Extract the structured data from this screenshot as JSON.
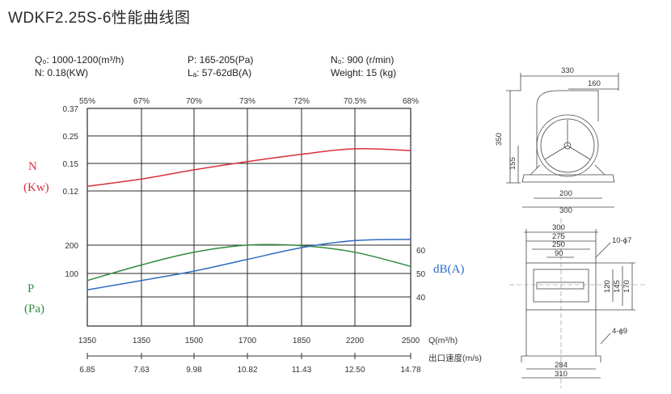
{
  "title": "WDKF2.25S-6性能曲线图",
  "specs": {
    "flow": "Q₀: 1000-1200(m³/h)",
    "power": "N: 0.18(KW)",
    "pressure": "P: 165-205(Pa)",
    "noise": "Lₐ: 57-62dB(A)",
    "speed": "N₀: 900 (r/min)",
    "weight": "Weight: 15 (kg)"
  },
  "chart_data": {
    "type": "line",
    "x": [
      1350,
      1350,
      1500,
      1700,
      1850,
      2200,
      2500
    ],
    "x_tick_labels": [
      "1350",
      "1350",
      "1500",
      "1700",
      "1850",
      "2200",
      "2500"
    ],
    "xlabel": "Q(m³/h)",
    "efficiency_labels": [
      "55%",
      "67%",
      "70%",
      "73%",
      "72%",
      "70.5%",
      "68%"
    ],
    "velocity_labels": [
      "6.85",
      "7.63",
      "9.98",
      "10.82",
      "11.43",
      "12.50",
      "14.78"
    ],
    "velocity_label": "出口速度(m/s)",
    "axes": {
      "power": {
        "label_top": "N",
        "label_bottom": "(Kw)",
        "ticks": [
          "0.37",
          "0.25",
          "0.15",
          "0.12"
        ],
        "tick_values": [
          0.37,
          0.25,
          0.15,
          0.12
        ]
      },
      "pressure": {
        "label_top": "P",
        "label_bottom": "(Pa)",
        "ticks": [
          "200",
          "100"
        ],
        "tick_values": [
          200,
          100
        ]
      },
      "noise": {
        "label": "dB(A)",
        "ticks": [
          "60",
          "50",
          "40"
        ],
        "tick_values": [
          60,
          50,
          40
        ]
      }
    },
    "series": [
      {
        "name": "N",
        "axis": "power",
        "color": "#d8303c",
        "values": [
          0.125,
          0.133,
          0.143,
          0.152,
          0.16,
          0.166,
          0.164
        ]
      },
      {
        "name": "P",
        "axis": "pressure",
        "color": "#2e8b3c",
        "values": [
          75,
          130,
          175,
          200,
          198,
          175,
          125
        ]
      },
      {
        "name": "dB(A)",
        "axis": "noise",
        "color": "#2f6cc0",
        "values": [
          43,
          47,
          51,
          56,
          61,
          64,
          64.5
        ]
      }
    ],
    "grid": true
  },
  "drawing": {
    "front_view": {
      "dims": [
        "330",
        "160",
        "350",
        "155",
        "200",
        "300"
      ]
    },
    "outlet_view": {
      "top_dims": [
        "300",
        "275",
        "250",
        "90"
      ],
      "side_dims": [
        "120",
        "145",
        "170"
      ],
      "bottom_dims": [
        "284",
        "310"
      ],
      "notes": [
        "10-ϕ7",
        "4-ϕ9"
      ]
    }
  },
  "colors": {
    "grid": "#2a2a2a",
    "power": "#d8303c",
    "pressure": "#2e8b3c",
    "noise": "#2f6cc0"
  }
}
